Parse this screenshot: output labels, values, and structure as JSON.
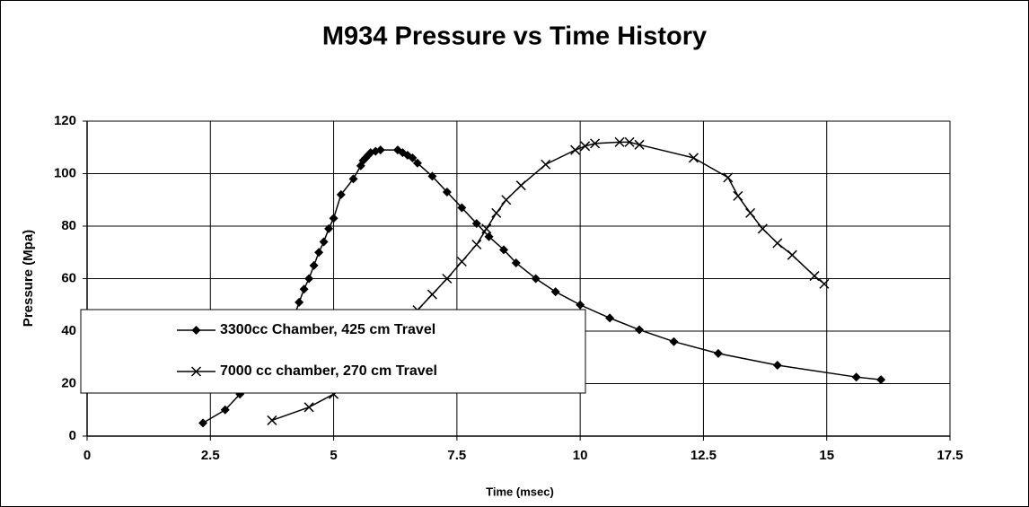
{
  "chart_data": {
    "type": "line",
    "title": "M934 Pressure vs Time History",
    "xlabel": "Time (msec)",
    "ylabel": "Pressure (Mpa)",
    "xlim": [
      0,
      17.5
    ],
    "xticks": [
      0,
      2.5,
      5,
      7.5,
      10,
      12.5,
      15,
      17.5
    ],
    "ylim": [
      0,
      120
    ],
    "yticks": [
      0,
      20,
      40,
      60,
      80,
      100,
      120
    ],
    "grid": true,
    "legend": "lower left",
    "series": [
      {
        "name": "3300cc Chamber, 425 cm Travel",
        "color": "#000000",
        "marker": "diamond",
        "x": [
          2.35,
          2.8,
          3.1,
          3.5,
          3.8,
          4.1,
          4.3,
          4.4,
          4.5,
          4.6,
          4.7,
          4.8,
          4.9,
          5.0,
          5.15,
          5.4,
          5.55,
          5.6,
          5.65,
          5.7,
          5.75,
          5.85,
          5.95,
          6.3,
          6.4,
          6.5,
          6.6,
          6.7,
          7.0,
          7.3,
          7.6,
          7.9,
          8.15,
          8.45,
          8.7,
          9.1,
          9.5,
          10.0,
          10.6,
          11.2,
          11.9,
          12.8,
          14.0,
          15.6,
          16.1
        ],
        "values": [
          5,
          10,
          16,
          22,
          30,
          40,
          51,
          56,
          60,
          65,
          70,
          74,
          79,
          83,
          92,
          98,
          103,
          105,
          106,
          107,
          108,
          108.5,
          109,
          109,
          108,
          107,
          106,
          104,
          99,
          93,
          87,
          81,
          76,
          71,
          66,
          60,
          55,
          50,
          45,
          40.5,
          36,
          31.5,
          27,
          22.5,
          21.5
        ]
      },
      {
        "name": "7000 cc chamber, 270 cm Travel",
        "color": "#000000",
        "marker": "x",
        "x": [
          3.75,
          4.5,
          5.0,
          5.5,
          6.0,
          6.4,
          6.7,
          7.0,
          7.3,
          7.6,
          7.9,
          8.1,
          8.3,
          8.5,
          8.8,
          9.3,
          9.9,
          10.1,
          10.3,
          10.8,
          11.0,
          11.2,
          12.3,
          13.0,
          13.2,
          13.45,
          13.7,
          14.0,
          14.3,
          14.75,
          14.95
        ],
        "values": [
          6,
          11,
          16,
          22,
          31,
          40,
          48,
          54,
          60,
          66.5,
          73,
          79,
          85,
          90,
          95.5,
          103.5,
          109,
          110.5,
          111.5,
          112,
          112,
          111,
          106,
          98.5,
          91.5,
          85,
          79,
          73.5,
          69,
          61,
          58
        ]
      }
    ]
  }
}
